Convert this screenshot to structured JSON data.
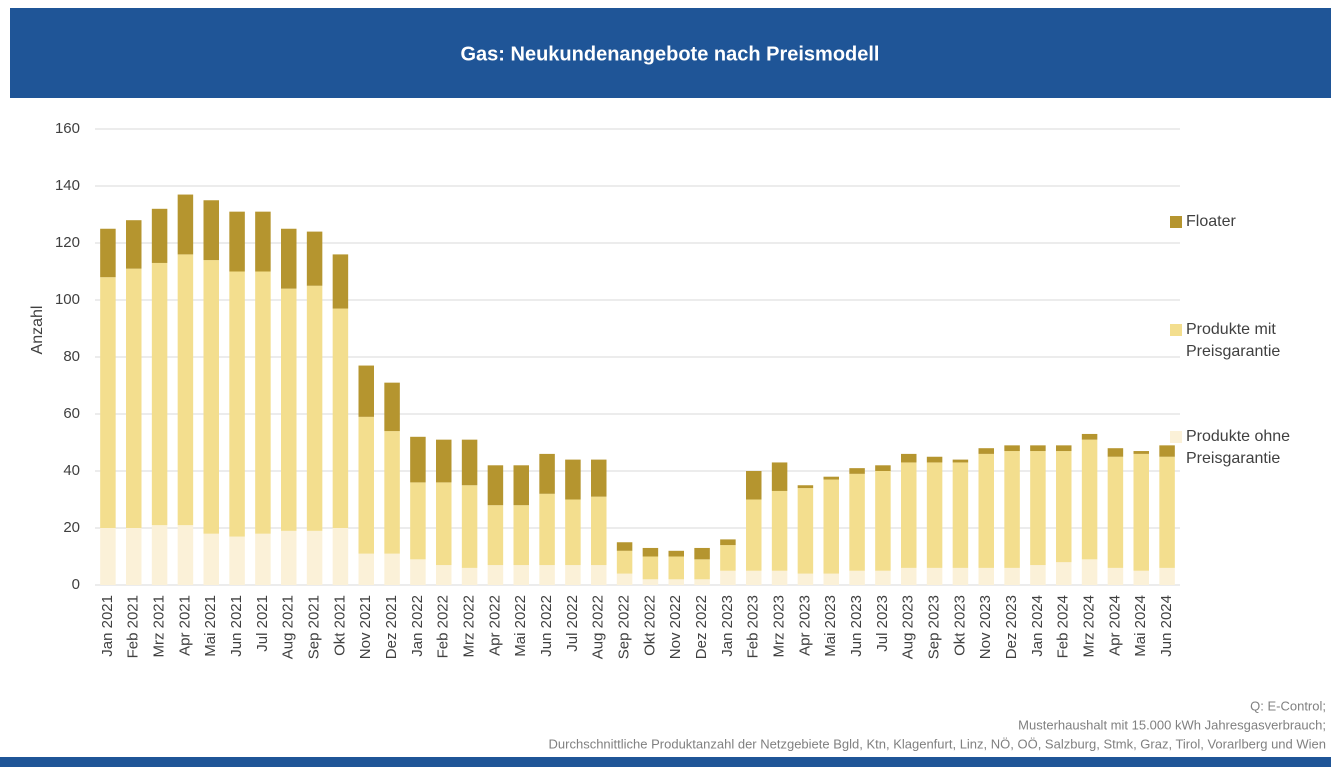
{
  "chart_data": {
    "type": "stacked_bar",
    "title": "Gas: Neukundenangebote nach Preismodell",
    "y_label": "Anzahl",
    "categories": [
      "Jan 2021",
      "Feb 2021",
      "Mrz 2021",
      "Apr 2021",
      "Mai 2021",
      "Jun 2021",
      "Jul 2021",
      "Aug 2021",
      "Sep 2021",
      "Okt 2021",
      "Nov 2021",
      "Dez 2021",
      "Jan 2022",
      "Feb 2022",
      "Mrz 2022",
      "Apr 2022",
      "Mai 2022",
      "Jun 2022",
      "Jul 2022",
      "Aug 2022",
      "Sep 2022",
      "Okt 2022",
      "Nov 2022",
      "Dez 2022",
      "Jan 2023",
      "Feb 2023",
      "Mrz 2023",
      "Apr 2023",
      "Mai 2023",
      "Jun 2023",
      "Jul 2023",
      "Aug 2023",
      "Sep 2023",
      "Okt 2023",
      "Nov 2023",
      "Dez 2023",
      "Jan 2024",
      "Feb 2024",
      "Mrz 2024",
      "Apr 2024",
      "Mai 2024",
      "Jun 2024"
    ],
    "series": [
      {
        "name": "Produkte ohne Preisgarantie",
        "color": "#fbf1d8",
        "values": [
          20,
          20,
          21,
          21,
          18,
          17,
          18,
          19,
          19,
          20,
          11,
          11,
          9,
          7,
          6,
          7,
          7,
          7,
          7,
          7,
          4,
          2,
          2,
          2,
          5,
          5,
          5,
          4,
          4,
          5,
          5,
          6,
          6,
          6,
          6,
          6,
          7,
          8,
          9,
          6,
          5,
          6
        ]
      },
      {
        "name": "Produkte mit Preisgarantie",
        "color": "#f3de8e",
        "values": [
          88,
          91,
          92,
          95,
          96,
          93,
          92,
          85,
          86,
          77,
          48,
          43,
          27,
          29,
          29,
          21,
          21,
          25,
          23,
          24,
          8,
          8,
          8,
          7,
          9,
          25,
          28,
          30,
          33,
          34,
          35,
          37,
          37,
          37,
          40,
          41,
          40,
          39,
          42,
          39,
          41,
          39
        ]
      },
      {
        "name": "Floater",
        "color": "#b5952f",
        "values": [
          17,
          17,
          19,
          21,
          21,
          21,
          21,
          21,
          19,
          19,
          18,
          17,
          16,
          15,
          16,
          14,
          14,
          14,
          14,
          13,
          3,
          3,
          2,
          4,
          2,
          10,
          10,
          1,
          1,
          2,
          2,
          3,
          2,
          1,
          2,
          2,
          2,
          2,
          2,
          3,
          1,
          4
        ]
      }
    ],
    "ylim": [
      0,
      160
    ],
    "yticks": [
      0,
      20,
      40,
      60,
      80,
      100,
      120,
      140,
      160
    ],
    "grid": true,
    "legend": "right",
    "source": [
      "Q: E-Control;",
      "Musterhaushalt  mit 15.000 kWh Jahresgasverbrauch;",
      "Durchschnittliche  Produktanzahl  der Netzgebiete  Bgld, Ktn, Klagenfurt, Linz, NÖ, OÖ, Salzburg, Stmk, Graz, Tirol, Vorarlberg und Wien"
    ]
  }
}
